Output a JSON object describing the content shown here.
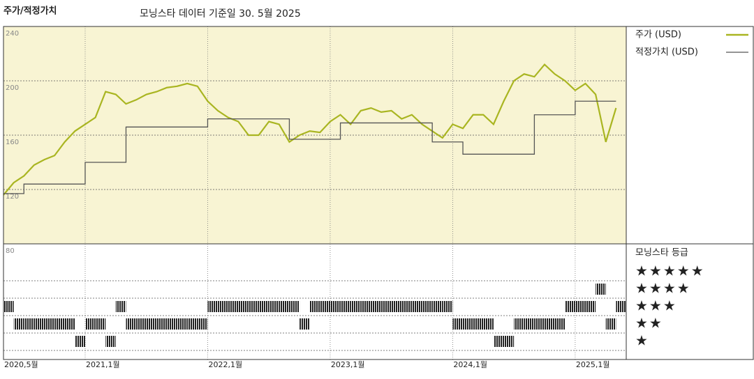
{
  "chart_data": {
    "type": "line",
    "title": "주가/적정가치",
    "subtitle": "모닝스타 데이터 기준일 30. 5월 2025",
    "x": [
      "2020-05",
      "2020-06",
      "2020-07",
      "2020-08",
      "2020-09",
      "2020-10",
      "2020-11",
      "2020-12",
      "2021-01",
      "2021-02",
      "2021-03",
      "2021-04",
      "2021-05",
      "2021-06",
      "2021-07",
      "2021-08",
      "2021-09",
      "2021-10",
      "2021-11",
      "2021-12",
      "2022-01",
      "2022-02",
      "2022-03",
      "2022-04",
      "2022-05",
      "2022-06",
      "2022-07",
      "2022-08",
      "2022-09",
      "2022-10",
      "2022-11",
      "2022-12",
      "2023-01",
      "2023-02",
      "2023-03",
      "2023-04",
      "2023-05",
      "2023-06",
      "2023-07",
      "2023-08",
      "2023-09",
      "2023-10",
      "2023-11",
      "2023-12",
      "2024-01",
      "2024-02",
      "2024-03",
      "2024-04",
      "2024-05",
      "2024-06",
      "2024-07",
      "2024-08",
      "2024-09",
      "2024-10",
      "2024-11",
      "2024-12",
      "2025-01",
      "2025-02",
      "2025-03",
      "2025-04",
      "2025-05"
    ],
    "xlim": [
      "2020-05",
      "2025-06"
    ],
    "xticks": [
      {
        "value": "2020-05",
        "label": "2020,5월"
      },
      {
        "value": "2021-01",
        "label": "2021,1월"
      },
      {
        "value": "2022-01",
        "label": "2022,1월"
      },
      {
        "value": "2023-01",
        "label": "2023,1월"
      },
      {
        "value": "2024-01",
        "label": "2024,1월"
      },
      {
        "value": "2025-01",
        "label": "2025,1월"
      }
    ],
    "ylim": [
      80,
      240
    ],
    "yticks": [
      80,
      120,
      160,
      200,
      240
    ],
    "grid": true,
    "series": [
      {
        "name": "주가 (USD)",
        "color": "#a9b521",
        "step": false,
        "values": [
          116,
          125,
          130,
          138,
          142,
          145,
          155,
          163,
          168,
          173,
          192,
          190,
          183,
          186,
          190,
          192,
          195,
          196,
          198,
          196,
          185,
          178,
          173,
          170,
          160,
          160,
          170,
          168,
          155,
          160,
          163,
          162,
          170,
          175,
          168,
          178,
          180,
          177,
          178,
          172,
          175,
          168,
          163,
          158,
          168,
          165,
          175,
          175,
          168,
          185,
          200,
          205,
          203,
          212,
          205,
          200,
          193,
          198,
          190,
          155,
          180
        ]
      },
      {
        "name": "적정가치 (USD)",
        "color": "#555555",
        "step": true,
        "values": [
          117,
          117,
          124,
          124,
          124,
          124,
          124,
          124,
          140,
          140,
          140,
          140,
          166,
          166,
          166,
          166,
          166,
          166,
          166,
          166,
          172,
          172,
          172,
          172,
          172,
          172,
          172,
          172,
          157,
          157,
          157,
          157,
          157,
          169,
          169,
          169,
          169,
          169,
          169,
          169,
          169,
          169,
          155,
          155,
          155,
          146,
          146,
          146,
          146,
          146,
          146,
          146,
          175,
          175,
          175,
          175,
          185,
          185,
          185,
          185,
          185
        ]
      }
    ],
    "rating": {
      "title": "모닝스타 등급",
      "levels": [
        5,
        4,
        3,
        2,
        1
      ],
      "level_labels": [
        "★★★★★",
        "★★★★",
        "★★★",
        "★★",
        "★"
      ],
      "values": [
        3,
        2,
        2,
        2,
        2,
        2,
        2,
        1,
        2,
        2,
        1,
        3,
        2,
        2,
        2,
        2,
        2,
        2,
        2,
        2,
        3,
        3,
        3,
        3,
        3,
        3,
        3,
        3,
        3,
        2,
        3,
        3,
        3,
        3,
        3,
        3,
        3,
        3,
        3,
        3,
        3,
        3,
        3,
        3,
        2,
        2,
        2,
        2,
        1,
        1,
        2,
        2,
        2,
        2,
        2,
        3,
        3,
        3,
        4,
        2,
        3
      ]
    }
  }
}
